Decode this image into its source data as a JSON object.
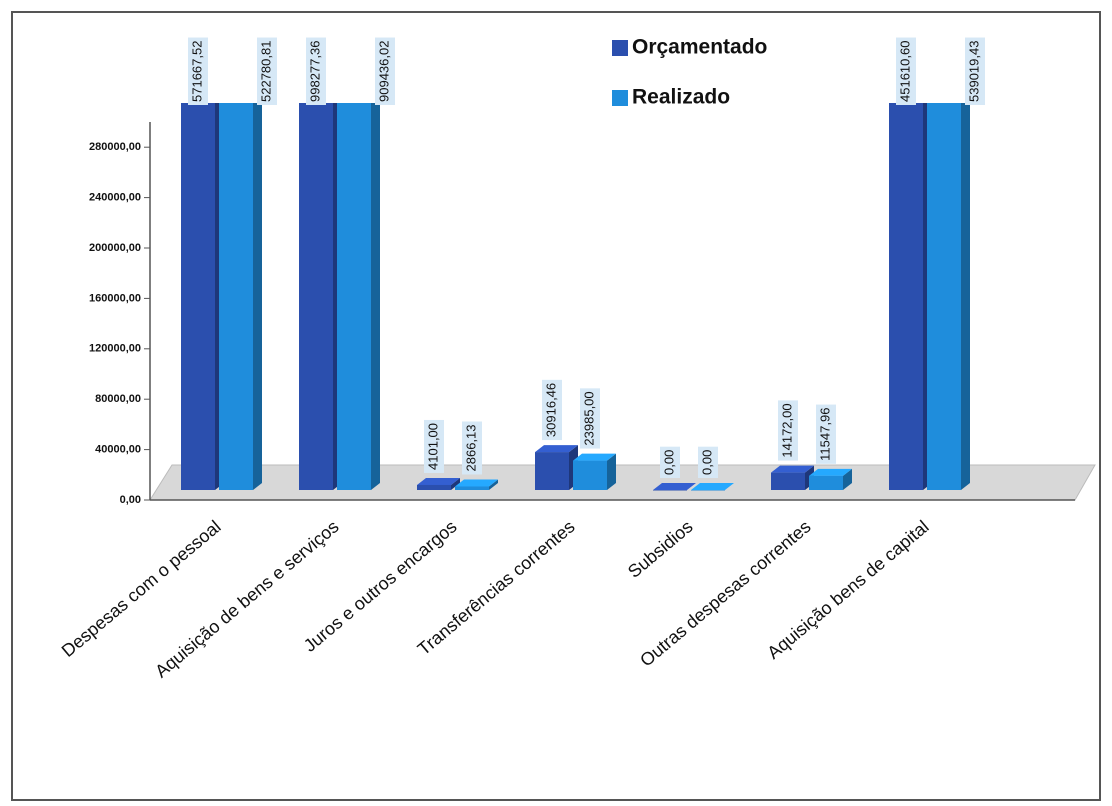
{
  "chart_data": {
    "type": "bar3d",
    "categories": [
      "Despesas com o pessoal",
      "Aquisição de bens e serviços",
      "Juros e outros encargos",
      "Transferências correntes",
      "Subsidios",
      "Outras despesas correntes",
      "Aquisição bens de capital"
    ],
    "series": [
      {
        "name": "Orçamentado",
        "color": "#2b4fae",
        "values": [
          571667.52,
          998277.36,
          4101,
          30916.46,
          0,
          14172,
          451610.6
        ],
        "value_labels": [
          "571667,52",
          "998277,36",
          "4101,00",
          "30916,46",
          "0,00",
          "14172,00",
          "451610,60"
        ]
      },
      {
        "name": "Realizado",
        "color": "#1f8ddc",
        "values": [
          522780.81,
          909436.02,
          2866.13,
          23985,
          0,
          11547.96,
          539019.43
        ],
        "value_labels": [
          "522780,81",
          "909436,02",
          "2866,13",
          "23985,00",
          "0,00",
          "11547,96",
          "539019,43"
        ]
      }
    ],
    "ylim": [
      0,
      300000
    ],
    "yticks": [
      {
        "value": 0,
        "label": "0,00"
      },
      {
        "value": 40000,
        "label": "40000,00"
      },
      {
        "value": 80000,
        "label": "80000,00"
      },
      {
        "value": 120000,
        "label": "120000,00"
      },
      {
        "value": 160000,
        "label": "160000,00"
      },
      {
        "value": 200000,
        "label": "200000,00"
      },
      {
        "value": 240000,
        "label": "240000,00"
      },
      {
        "value": 280000,
        "label": "280000,00"
      }
    ],
    "grid": false,
    "legend": "top-right"
  }
}
